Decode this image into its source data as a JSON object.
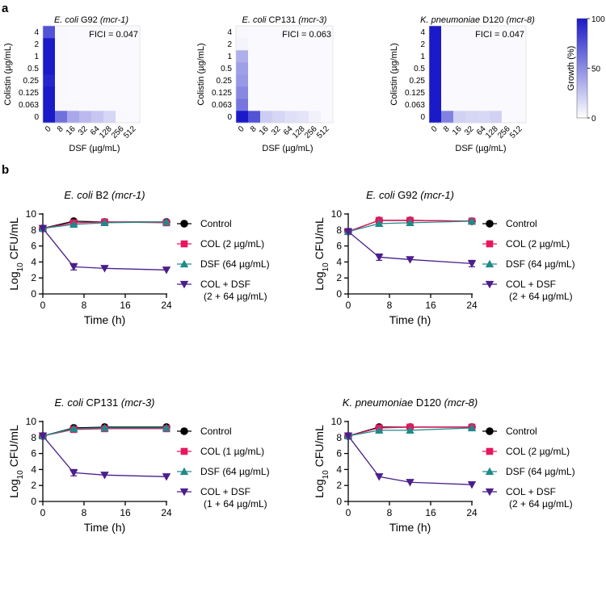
{
  "figure": {
    "panel_a_label": "a",
    "panel_b_label": "b"
  },
  "chart_data": [
    {
      "type": "heatmap",
      "title_species": "E. coli",
      "title_strain": " G92 ",
      "title_gene": "(mcr-1)",
      "fici_label": "FICI = 0.047",
      "xlabel": "DSF (µg/mL)",
      "ylabel": "Colistin (µg/mL)",
      "x_ticks": [
        "0",
        "8",
        "16",
        "32",
        "64",
        "128",
        "256",
        "512"
      ],
      "y_ticks": [
        "0",
        "0.063",
        "0.125",
        "0.25",
        "0.5",
        "1",
        "2",
        "4"
      ],
      "grid": [
        [
          100,
          62,
          38,
          30,
          25,
          18,
          3,
          2
        ],
        [
          100,
          3,
          3,
          2,
          2,
          2,
          2,
          2
        ],
        [
          100,
          3,
          2,
          2,
          2,
          2,
          2,
          2
        ],
        [
          95,
          3,
          2,
          2,
          2,
          2,
          2,
          2
        ],
        [
          100,
          3,
          2,
          2,
          2,
          2,
          2,
          2
        ],
        [
          100,
          3,
          2,
          2,
          2,
          2,
          2,
          2
        ],
        [
          100,
          3,
          2,
          2,
          2,
          2,
          2,
          2
        ],
        [
          75,
          3,
          2,
          2,
          2,
          2,
          2,
          2
        ]
      ]
    },
    {
      "type": "heatmap",
      "title_species": "E. coli",
      "title_strain": " CP131 ",
      "title_gene": "(mcr-3)",
      "fici_label": "FICI = 0.063",
      "xlabel": "DSF (µg/mL)",
      "ylabel": "Colistin (µg/mL)",
      "x_ticks": [
        "0",
        "8",
        "16",
        "32",
        "64",
        "128",
        "256",
        "512"
      ],
      "y_ticks": [
        "0",
        "0.063",
        "0.125",
        "0.25",
        "0.5",
        "1",
        "2",
        "4"
      ],
      "grid": [
        [
          100,
          75,
          22,
          18,
          14,
          12,
          6,
          2
        ],
        [
          60,
          2,
          2,
          2,
          2,
          2,
          2,
          2
        ],
        [
          52,
          2,
          2,
          2,
          2,
          2,
          2,
          2
        ],
        [
          45,
          2,
          2,
          2,
          2,
          2,
          2,
          2
        ],
        [
          42,
          2,
          2,
          2,
          2,
          2,
          2,
          2
        ],
        [
          35,
          2,
          2,
          2,
          2,
          2,
          2,
          2
        ],
        [
          5,
          2,
          2,
          2,
          2,
          2,
          2,
          2
        ],
        [
          3,
          2,
          2,
          2,
          2,
          2,
          2,
          2
        ]
      ]
    },
    {
      "type": "heatmap",
      "title_species": "K. pneumoniae",
      "title_strain": " D120 ",
      "title_gene": "(mcr-8)",
      "fici_label": "FICI = 0.047",
      "xlabel": "DSF (µg/mL)",
      "ylabel": "Colistin (µg/mL)",
      "colorbar_label": "Growth (%)",
      "colorbar_ticks": [
        "0",
        "50",
        "100"
      ],
      "x_ticks": [
        "0",
        "8",
        "16",
        "32",
        "64",
        "128",
        "256",
        "512"
      ],
      "y_ticks": [
        "0",
        "0.063",
        "0.125",
        "0.25",
        "0.5",
        "1",
        "2",
        "4"
      ],
      "grid": [
        [
          100,
          55,
          20,
          18,
          17,
          20,
          2,
          2
        ],
        [
          100,
          2,
          2,
          2,
          2,
          2,
          2,
          2
        ],
        [
          100,
          2,
          2,
          2,
          2,
          2,
          2,
          2
        ],
        [
          100,
          2,
          2,
          2,
          2,
          2,
          2,
          2
        ],
        [
          100,
          2,
          2,
          2,
          2,
          2,
          2,
          2
        ],
        [
          100,
          2,
          2,
          2,
          2,
          2,
          2,
          2
        ],
        [
          100,
          2,
          2,
          2,
          2,
          2,
          2,
          2
        ],
        [
          100,
          2,
          2,
          2,
          2,
          2,
          2,
          2
        ]
      ]
    },
    {
      "type": "line",
      "title_species": "E. coli",
      "title_strain": " B2 ",
      "title_gene": "(mcr-1)",
      "xlabel": "Time (h)",
      "ylabel_prefix": "Log",
      "ylabel_sub": "10",
      "ylabel_suffix": " CFU/mL",
      "x": [
        0,
        6,
        12,
        24
      ],
      "xlim": [
        0,
        24
      ],
      "xticks": [
        0,
        8,
        16,
        24
      ],
      "ylim": [
        0,
        10
      ],
      "yticks": [
        0,
        2,
        4,
        6,
        8,
        10
      ],
      "series": [
        {
          "name": "Control",
          "marker": "circle",
          "color": "#000000",
          "values": [
            8.2,
            9.1,
            9.0,
            9.0
          ],
          "errors": [
            0.1,
            0.1,
            0.1,
            0.1
          ]
        },
        {
          "name": "COL (2 µg/mL)",
          "marker": "square",
          "color": "#e8175d",
          "values": [
            8.2,
            8.9,
            9.0,
            8.9
          ],
          "errors": [
            0.1,
            0.1,
            0.1,
            0.1
          ]
        },
        {
          "name": "DSF (64 µg/mL)",
          "marker": "triangle-up",
          "color": "#1f8a8a",
          "values": [
            8.2,
            8.7,
            8.9,
            9.0
          ],
          "errors": [
            0.1,
            0.1,
            0.1,
            0.1
          ]
        },
        {
          "name": "COL + DSF",
          "name_line2": "(2 + 64 µg/mL)",
          "marker": "triangle-down",
          "color": "#4b1e8c",
          "values": [
            8.2,
            3.4,
            3.2,
            3.0
          ],
          "errors": [
            0.1,
            0.4,
            0.1,
            0.1
          ]
        }
      ]
    },
    {
      "type": "line",
      "title_species": "E. coli",
      "title_strain": " G92 ",
      "title_gene": "(mcr-1)",
      "xlabel": "Time (h)",
      "ylabel_prefix": "Log",
      "ylabel_sub": "10",
      "ylabel_suffix": " CFU/mL",
      "x": [
        0,
        6,
        12,
        24
      ],
      "xlim": [
        0,
        24
      ],
      "xticks": [
        0,
        8,
        16,
        24
      ],
      "ylim": [
        0,
        10
      ],
      "yticks": [
        0,
        2,
        4,
        6,
        8,
        10
      ],
      "series": [
        {
          "name": "Control",
          "marker": "circle",
          "color": "#000000",
          "values": [
            7.8,
            9.2,
            9.2,
            9.1
          ],
          "errors": [
            0.1,
            0.1,
            0.1,
            0.1
          ]
        },
        {
          "name": "COL (2 µg/mL)",
          "marker": "square",
          "color": "#e8175d",
          "values": [
            7.8,
            9.2,
            9.2,
            9.1
          ],
          "errors": [
            0.1,
            0.1,
            0.1,
            0.1
          ]
        },
        {
          "name": "DSF (64 µg/mL)",
          "marker": "triangle-up",
          "color": "#1f8a8a",
          "values": [
            7.8,
            8.8,
            8.9,
            9.1
          ],
          "errors": [
            0.1,
            0.1,
            0.1,
            0.1
          ]
        },
        {
          "name": "COL + DSF",
          "name_line2": "(2 + 64 µg/mL)",
          "marker": "triangle-down",
          "color": "#4b1e8c",
          "values": [
            7.8,
            4.6,
            4.3,
            3.8
          ],
          "errors": [
            0.1,
            0.4,
            0.1,
            0.4
          ]
        }
      ]
    },
    {
      "type": "line",
      "title_species": "E. coli",
      "title_strain": " CP131 ",
      "title_gene": "(mcr-3)",
      "xlabel": "Time (h)",
      "ylabel_prefix": "Log",
      "ylabel_sub": "10",
      "ylabel_suffix": " CFU/mL",
      "x": [
        0,
        6,
        12,
        24
      ],
      "xlim": [
        0,
        24
      ],
      "xticks": [
        0,
        8,
        16,
        24
      ],
      "ylim": [
        0,
        10
      ],
      "yticks": [
        0,
        2,
        4,
        6,
        8,
        10
      ],
      "series": [
        {
          "name": "Control",
          "marker": "circle",
          "color": "#000000",
          "values": [
            8.2,
            9.2,
            9.3,
            9.3
          ],
          "errors": [
            0.1,
            0.1,
            0.1,
            0.1
          ]
        },
        {
          "name": "COL (1 µg/mL)",
          "marker": "square",
          "color": "#e8175d",
          "values": [
            8.2,
            9.0,
            9.1,
            9.1
          ],
          "errors": [
            0.1,
            0.1,
            0.1,
            0.1
          ]
        },
        {
          "name": "DSF (64 µg/mL)",
          "marker": "triangle-up",
          "color": "#1f8a8a",
          "values": [
            8.2,
            9.1,
            9.2,
            9.2
          ],
          "errors": [
            0.1,
            0.1,
            0.1,
            0.1
          ]
        },
        {
          "name": "COL + DSF",
          "name_line2": "(1 + 64 µg/mL)",
          "marker": "triangle-down",
          "color": "#4b1e8c",
          "values": [
            8.2,
            3.6,
            3.3,
            3.1
          ],
          "errors": [
            0.1,
            0.4,
            0.1,
            0.1
          ]
        }
      ]
    },
    {
      "type": "line",
      "title_species": "K. pneumoniae",
      "title_strain": " D120 ",
      "title_gene": "(mcr-8)",
      "xlabel": "Time (h)",
      "ylabel_prefix": "Log",
      "ylabel_sub": "10",
      "ylabel_suffix": " CFU/mL",
      "x": [
        0,
        6,
        12,
        24
      ],
      "xlim": [
        0,
        24
      ],
      "xticks": [
        0,
        8,
        16,
        24
      ],
      "ylim": [
        0,
        10
      ],
      "yticks": [
        0,
        2,
        4,
        6,
        8,
        10
      ],
      "series": [
        {
          "name": "Control",
          "marker": "circle",
          "color": "#000000",
          "values": [
            8.2,
            9.3,
            9.3,
            9.3
          ],
          "errors": [
            0.1,
            0.1,
            0.1,
            0.1
          ]
        },
        {
          "name": "COL (2 µg/mL)",
          "marker": "square",
          "color": "#e8175d",
          "values": [
            8.2,
            9.2,
            9.3,
            9.3
          ],
          "errors": [
            0.1,
            0.1,
            0.1,
            0.1
          ]
        },
        {
          "name": "DSF (64 µg/mL)",
          "marker": "triangle-up",
          "color": "#1f8a8a",
          "values": [
            8.2,
            8.9,
            8.9,
            9.2
          ],
          "errors": [
            0.1,
            0.1,
            0.1,
            0.1
          ]
        },
        {
          "name": "COL + DSF",
          "name_line2": "(2 + 64 µg/mL)",
          "marker": "triangle-down",
          "color": "#4b1e8c",
          "values": [
            8.2,
            3.1,
            2.4,
            2.1
          ],
          "errors": [
            0.1,
            0.1,
            0.1,
            0.1
          ]
        }
      ]
    }
  ],
  "colors": {
    "heatmap_max": "#1a1ac8",
    "heatmap_min": "#ffffff"
  }
}
